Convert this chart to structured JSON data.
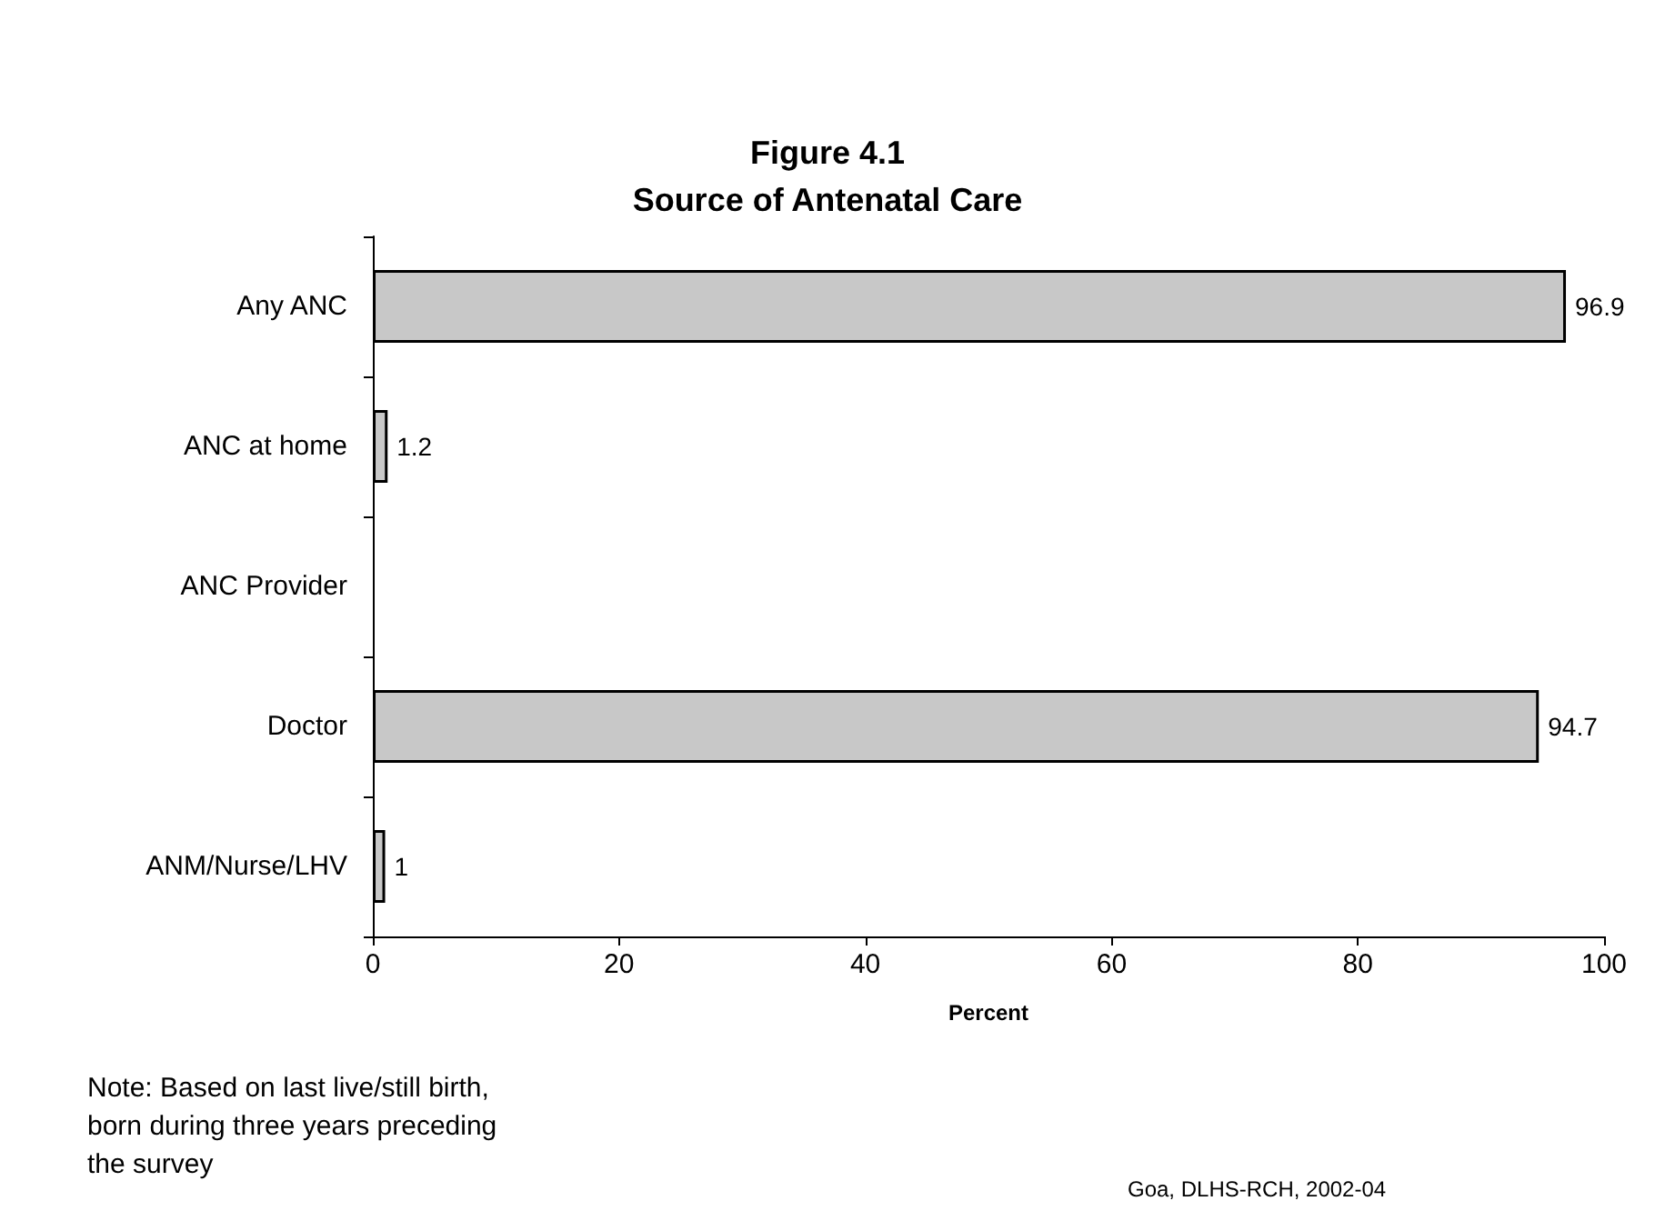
{
  "chart_data": {
    "type": "bar",
    "orientation": "horizontal",
    "title": "Figure 4.1",
    "subtitle": "Source of Antenatal Care",
    "categories": [
      "Any ANC",
      "ANC at home",
      "ANC Provider",
      "Doctor",
      "ANM/Nurse/LHV"
    ],
    "values": [
      96.9,
      1.2,
      null,
      94.7,
      1
    ],
    "color": "#c8c8c8",
    "xlim": [
      0,
      100
    ],
    "xticks": [
      0,
      20,
      40,
      60,
      80,
      100
    ],
    "xlabel": "Percent",
    "data_labels": true,
    "grid": false,
    "annotations": [
      "Note: Based on last live/still birth, born during three years preceding the survey",
      "Goa, DLHS-RCH, 2002-04"
    ]
  }
}
